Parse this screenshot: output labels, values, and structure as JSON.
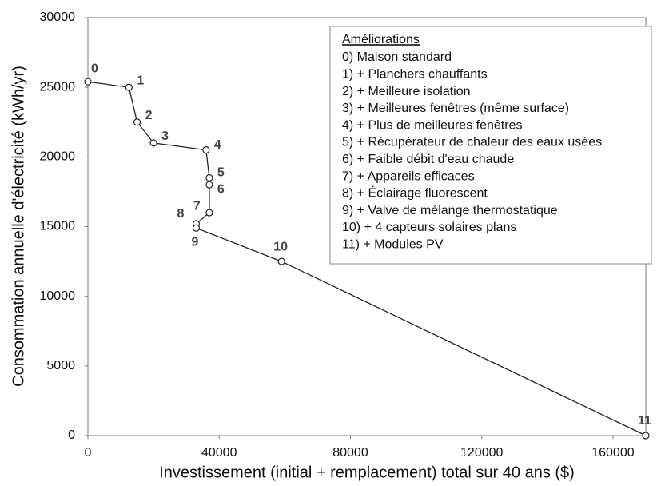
{
  "chart_data": {
    "type": "line",
    "xlabel": "Investissement (initial + remplacement) total sur 40 ans ($)",
    "ylabel": "Consommation annuelle d'électricité (kWh/yr)",
    "x": [
      0,
      12500,
      15000,
      20000,
      36000,
      37000,
      37000,
      37000,
      33000,
      33000,
      59000,
      170000
    ],
    "series": [
      {
        "color": "#222222",
        "values": [
          25400,
          25000,
          22500,
          21000,
          20500,
          18500,
          18000,
          16000,
          15200,
          14900,
          12500,
          0
        ]
      }
    ],
    "point_labels": [
      "0",
      "1",
      "2",
      "3",
      "4",
      "5",
      "6",
      "7",
      "8",
      "9",
      "10",
      "11"
    ],
    "xlim": [
      0,
      170000
    ],
    "xticks": [
      0,
      40000,
      80000,
      120000,
      160000
    ],
    "ylim": [
      0,
      30000
    ],
    "yticks": [
      0,
      5000,
      10000,
      15000,
      20000,
      25000,
      30000
    ],
    "legend_box": {
      "title": "Améliorations",
      "items": [
        "0) Maison standard",
        "1) + Planchers chauffants",
        "2) + Meilleure isolation",
        "3) + Meilleures fenêtres (même surface)",
        "4) + Plus de meilleures fenêtres",
        "5) + Récupérateur de chaleur des eaux usées",
        "6) + Faible débit d'eau chaude",
        "7) + Appareils efficaces",
        "8) + Éclairage fluorescent",
        "9) + Valve de mélange thermostatique",
        "10) + 4 capteurs solaires plans",
        "11) + Modules PV"
      ]
    }
  }
}
